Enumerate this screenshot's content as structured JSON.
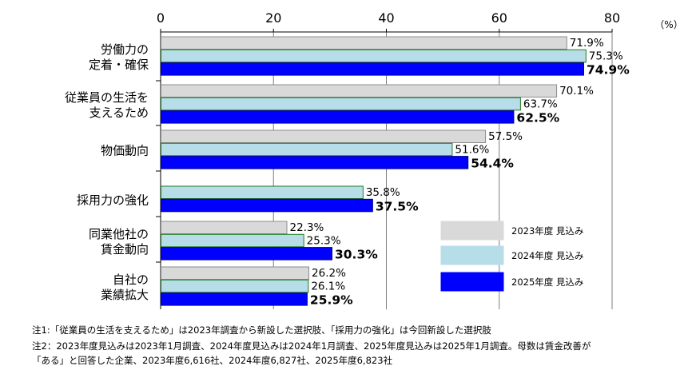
{
  "chart_data": {
    "type": "bar",
    "orientation": "horizontal",
    "unit_label": "（%）",
    "xlim": [
      0,
      80
    ],
    "xticks": [
      "0",
      "20",
      "40",
      "60",
      "80"
    ],
    "grid": true,
    "legend_position": "bottom-right",
    "categories": [
      {
        "lines": [
          "労働力の",
          "定着・確保"
        ]
      },
      {
        "lines": [
          "従業員の生活を",
          "支えるため"
        ]
      },
      {
        "lines": [
          "物価動向"
        ]
      },
      {
        "lines": [
          "採用力の強化"
        ]
      },
      {
        "lines": [
          "同業他社の",
          "賃金動向"
        ]
      },
      {
        "lines": [
          "自社の",
          "業績拡大"
        ]
      }
    ],
    "series": [
      {
        "name": "2023年度 見込み",
        "color": "#d9d9d9",
        "stroke": "#8c8c8c",
        "values": [
          71.9,
          70.1,
          57.5,
          null,
          22.3,
          26.2
        ],
        "labels": [
          "71.9%",
          "70.1%",
          "57.5%",
          "",
          "22.3%",
          "26.2%"
        ]
      },
      {
        "name": "2024年度 見込み",
        "color": "#b7dde8",
        "stroke": "#1f7a1f",
        "values": [
          75.3,
          63.7,
          51.6,
          35.8,
          25.3,
          26.1
        ],
        "labels": [
          "75.3%",
          "63.7%",
          "51.6%",
          "35.8%",
          "25.3%",
          "26.1%"
        ]
      },
      {
        "name": "2025年度 見込み",
        "color": "#0000ff",
        "stroke": "#00008b",
        "values": [
          74.9,
          62.5,
          54.4,
          37.5,
          30.3,
          25.9
        ],
        "labels": [
          "74.9%",
          "62.5%",
          "54.4%",
          "37.5%",
          "30.3%",
          "25.9%"
        ]
      }
    ]
  },
  "notes": {
    "note1": "注1:「従業員の生活を支えるため」は2023年調査から新設した選択肢、「採用力の強化」は今回新設した選択肢",
    "note2": "注2：2023年度見込みは2023年1月調査、2024年度見込みは2024年1月調査、2025年度見込みは2025年1月調査。母数は賃金改善が",
    "note3": "「ある」と回答した企業、2023年度6,616社、2024年度6,827社、2025年度6,823社"
  }
}
